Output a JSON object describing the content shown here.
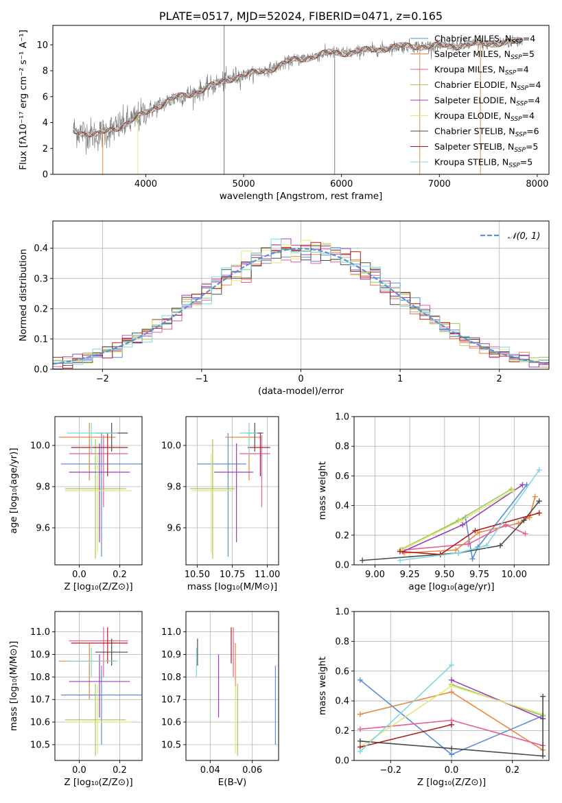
{
  "colors": {
    "chabrier_miles": "#5a8bd6",
    "salpeter_miles": "#e9883b",
    "kroupa_miles": "#e65c9b",
    "chabrier_elodie": "#9bc95c",
    "salpeter_elodie": "#9b3dbb",
    "kroupa_elodie": "#dfe876",
    "chabrier_stelib": "#4a4a4a",
    "salpeter_stelib": "#b21c1c",
    "kroupa_stelib": "#7fd8e0",
    "spectrum": "#7f7f7f",
    "normal_curve": "#5b8fd6",
    "grid": "#b0b0b0"
  },
  "chart_data": [
    {
      "id": "spectrum",
      "type": "line",
      "title": "PLATE=0517, MJD=52024, FIBERID=0471, z=0.165",
      "xlabel": "wavelength [Angstrom, rest frame]",
      "ylabel": "Flux [fλ10⁻¹⁷ erg cm⁻² s⁻¹ A⁻¹]",
      "xlim": [
        3050,
        8120
      ],
      "ylim": [
        0,
        11.5
      ],
      "xticks": [
        4000,
        5000,
        6000,
        7000,
        8000
      ],
      "xtick_labels": [
        "4000",
        "5000",
        "6000",
        "7000",
        "8000"
      ],
      "yticks": [
        0,
        2,
        4,
        6,
        8,
        10
      ],
      "ytick_labels": [
        "0",
        "2",
        "4",
        "6",
        "8",
        "10"
      ],
      "grid": false,
      "legend_position": "right",
      "data_range_x": [
        3260,
        7850
      ],
      "continuum_knots": [
        [
          3260,
          3.4
        ],
        [
          3500,
          3.0
        ],
        [
          3700,
          3.6
        ],
        [
          3900,
          4.3
        ],
        [
          4100,
          5.2
        ],
        [
          4300,
          5.9
        ],
        [
          4500,
          6.3
        ],
        [
          4700,
          6.9
        ],
        [
          4900,
          7.5
        ],
        [
          5100,
          7.8
        ],
        [
          5300,
          8.2
        ],
        [
          5500,
          8.8
        ],
        [
          5700,
          9.1
        ],
        [
          5900,
          9.4
        ],
        [
          6100,
          9.4
        ],
        [
          6300,
          9.6
        ],
        [
          6500,
          9.8
        ],
        [
          6700,
          9.9
        ],
        [
          6900,
          9.9
        ],
        [
          7100,
          9.9
        ],
        [
          7300,
          10.0
        ],
        [
          7500,
          10.1
        ],
        [
          7700,
          10.2
        ],
        [
          7850,
          10.3
        ]
      ],
      "legend": [
        {
          "key": "chabrier_miles",
          "label": "Chabrier MILES, N",
          "sub": "SSP",
          "tail": "=4"
        },
        {
          "key": "salpeter_miles",
          "label": "Salpeter MILES, N",
          "sub": "SSP",
          "tail": "=5"
        },
        {
          "key": "kroupa_miles",
          "label": "Kroupa MILES, N",
          "sub": "SSP",
          "tail": "=4"
        },
        {
          "key": "chabrier_elodie",
          "label": "Chabrier ELODIE, N",
          "sub": "SSP",
          "tail": "=4"
        },
        {
          "key": "salpeter_elodie",
          "label": "Salpeter ELODIE, N",
          "sub": "SSP",
          "tail": "=4"
        },
        {
          "key": "kroupa_elodie",
          "label": "Kroupa ELODIE, N",
          "sub": "SSP",
          "tail": "=4"
        },
        {
          "key": "chabrier_stelib",
          "label": "Chabrier STELIB, N",
          "sub": "SSP",
          "tail": "=6"
        },
        {
          "key": "salpeter_stelib",
          "label": "Salpeter STELIB, N",
          "sub": "SSP",
          "tail": "=5"
        },
        {
          "key": "kroupa_stelib",
          "label": "Kroupa STELIB, N",
          "sub": "SSP",
          "tail": "=5"
        }
      ]
    },
    {
      "id": "residuals",
      "type": "line",
      "xlabel": "(data-model)/error",
      "ylabel": "Normed distribution",
      "xlim": [
        -2.5,
        2.5
      ],
      "ylim": [
        0,
        0.49
      ],
      "xticks": [
        -2,
        -1,
        0,
        1,
        2
      ],
      "xtick_labels": [
        "−2",
        "−1",
        "0",
        "1",
        "2"
      ],
      "yticks": [
        0,
        0.1,
        0.2,
        0.3,
        0.4
      ],
      "ytick_labels": [
        "0.0",
        "0.1",
        "0.2",
        "0.3",
        "0.4"
      ],
      "grid": true,
      "legend_label": "𝒩(0, 1)",
      "legend_position": "top-right",
      "bin_width": 0.1
    },
    {
      "id": "age_vs_Z",
      "type": "scatter",
      "xlabel": "Z [log₁₀(Z/Z⊙)]",
      "ylabel": "age  [log₁₀(age/yr)]",
      "xlim": [
        -0.12,
        0.31
      ],
      "ylim": [
        9.42,
        10.14
      ],
      "xticks": [
        0.0,
        0.2
      ],
      "xtick_labels": [
        "0.0",
        "0.2"
      ],
      "yticks": [
        9.6,
        9.8,
        10.0
      ],
      "ytick_labels": [
        "9.6",
        "9.8",
        "10.0"
      ],
      "grid": true
    },
    {
      "id": "age_vs_mass",
      "type": "scatter",
      "xlabel": "mass [log₁₀(M/M⊙)]",
      "xlim": [
        10.42,
        11.08
      ],
      "ylim": [
        9.42,
        10.14
      ],
      "xticks": [
        10.5,
        10.75,
        11.0
      ],
      "xtick_labels": [
        "10.50",
        "10.75",
        "11.00"
      ],
      "yticks": [
        9.6,
        9.8,
        10.0
      ],
      "ytick_labels": [
        "9.6",
        "9.8",
        "10.0"
      ],
      "grid": true
    },
    {
      "id": "mw_vs_age",
      "type": "line",
      "xlabel": "age  [log₁₀(age/yr)]",
      "ylabel": "mass weight",
      "xlim": [
        8.85,
        10.25
      ],
      "ylim": [
        0,
        1.0
      ],
      "xticks": [
        9.0,
        9.25,
        9.5,
        9.75,
        10.0
      ],
      "xtick_labels": [
        "9.00",
        "9.25",
        "9.50",
        "9.75",
        "10.00"
      ],
      "yticks": [
        0,
        0.2,
        0.4,
        0.6,
        0.8,
        1.0
      ],
      "ytick_labels": [
        "0.0",
        "0.2",
        "0.4",
        "0.6",
        "0.8",
        "1.0"
      ],
      "grid": true
    },
    {
      "id": "mass_vs_Z",
      "type": "scatter",
      "xlabel": "Z [log₁₀(Z/Z⊙)]",
      "ylabel": "mass [log₁₀(M/M⊙)]",
      "xlim": [
        -0.12,
        0.31
      ],
      "ylim": [
        10.43,
        11.09
      ],
      "xticks": [
        0.0,
        0.2
      ],
      "xtick_labels": [
        "0.0",
        "0.2"
      ],
      "yticks": [
        10.5,
        10.6,
        10.7,
        10.8,
        10.9,
        11.0
      ],
      "ytick_labels": [
        "10.5",
        "10.6",
        "10.7",
        "10.8",
        "10.9",
        "11.0"
      ],
      "grid": true
    },
    {
      "id": "mass_vs_ebv",
      "type": "scatter",
      "xlabel": "E(B-V)",
      "xlim": [
        0.0285,
        0.0725
      ],
      "ylim": [
        10.43,
        11.09
      ],
      "xticks": [
        0.04,
        0.06
      ],
      "xtick_labels": [
        "0.04",
        "0.06"
      ],
      "yticks": [
        10.5,
        10.6,
        10.7,
        10.8,
        10.9,
        11.0
      ],
      "ytick_labels": [
        "10.5",
        "10.6",
        "10.7",
        "10.8",
        "10.9",
        "11.0"
      ],
      "grid": true
    },
    {
      "id": "mw_vs_Z",
      "type": "line",
      "xlabel": "Z [log₁₀(Z/Z⊙)]",
      "ylabel": "mass weight",
      "xlim": [
        -0.32,
        0.32
      ],
      "ylim": [
        0,
        1.0
      ],
      "xticks": [
        -0.2,
        0.0,
        0.2
      ],
      "xtick_labels": [
        "−0.2",
        "0.0",
        "0.2"
      ],
      "yticks": [
        0,
        0.2,
        0.4,
        0.6,
        0.8,
        1.0
      ],
      "ytick_labels": [
        "0.0",
        "0.2",
        "0.4",
        "0.6",
        "0.8",
        "1.0"
      ],
      "grid": true
    }
  ],
  "models": [
    {
      "key": "chabrier_miles",
      "Z": 0.11,
      "Z_err": [
        0.2,
        0.2
      ],
      "age": 9.91,
      "age_err": [
        0.45,
        0.15
      ],
      "mass": 10.72,
      "mass_err": [
        0.22,
        0.13
      ],
      "ebv": 0.071,
      "age_mw": [
        [
          9.19,
          0.1
        ],
        [
          9.65,
          0.32
        ],
        [
          9.7,
          0.04
        ],
        [
          9.74,
          0.12
        ],
        [
          10.09,
          0.54
        ]
      ],
      "Z_mw": [
        [
          -0.3,
          0.54
        ],
        [
          0.0,
          0.04
        ],
        [
          0.3,
          0.3
        ]
      ]
    },
    {
      "key": "salpeter_miles",
      "Z": 0.05,
      "Z_err": [
        0.15,
        0.13
      ],
      "age": 10.04,
      "age_err": [
        0.21,
        0.07
      ],
      "mass": 10.87,
      "mass_err": [
        0.17,
        0.08
      ],
      "ebv": 0.052,
      "age_mw": [
        [
          9.21,
          0.08
        ],
        [
          9.58,
          0.1
        ],
        [
          9.75,
          0.22
        ],
        [
          10.03,
          0.28
        ],
        [
          10.11,
          0.32
        ],
        [
          10.15,
          0.46
        ]
      ],
      "Z_mw": [
        [
          -0.3,
          0.31
        ],
        [
          0.0,
          0.46
        ],
        [
          0.3,
          0.07
        ]
      ]
    },
    {
      "key": "kroupa_miles",
      "Z": 0.12,
      "Z_err": [
        0.17,
        0.12
      ],
      "age": 9.96,
      "age_err": [
        0.26,
        0.09
      ],
      "mass": 10.96,
      "mass_err": [
        0.16,
        0.06
      ],
      "ebv": 0.051,
      "age_mw": [
        [
          9.2,
          0.1
        ],
        [
          9.67,
          0.14
        ],
        [
          9.94,
          0.27
        ],
        [
          10.08,
          0.21
        ]
      ],
      "Z_mw": [
        [
          -0.3,
          0.21
        ],
        [
          0.0,
          0.27
        ],
        [
          0.3,
          0.1
        ]
      ]
    },
    {
      "key": "chabrier_elodie",
      "Z": 0.08,
      "Z_err": [
        0.15,
        0.15
      ],
      "age": 9.79,
      "age_err": [
        0.34,
        0.24
      ],
      "mass": 10.61,
      "mass_err": [
        0.16,
        0.16
      ],
      "ebv": 0.053,
      "age_mw": [
        [
          9.18,
          0.1
        ],
        [
          9.6,
          0.3
        ],
        [
          9.98,
          0.51
        ]
      ],
      "Z_mw": [
        [
          0.0,
          0.51
        ],
        [
          0.3,
          0.3
        ]
      ]
    },
    {
      "key": "salpeter_elodie",
      "Z": 0.1,
      "Z_err": [
        0.15,
        0.15
      ],
      "age": 9.87,
      "age_err": [
        0.34,
        0.14
      ],
      "mass": 10.78,
      "mass_err": [
        0.16,
        0.12
      ],
      "ebv": 0.044,
      "age_mw": [
        [
          9.2,
          0.09
        ],
        [
          9.63,
          0.27
        ],
        [
          10.06,
          0.54
        ]
      ],
      "Z_mw": [
        [
          0.0,
          0.54
        ],
        [
          0.3,
          0.28
        ]
      ]
    },
    {
      "key": "kroupa_elodie",
      "Z": 0.09,
      "Z_err": [
        0.16,
        0.17
      ],
      "age": 9.78,
      "age_err": [
        0.3,
        0.18
      ],
      "mass": 10.6,
      "mass_err": [
        0.14,
        0.16
      ],
      "ebv": 0.052,
      "age_mw": [
        [
          9.19,
          0.1
        ],
        [
          9.62,
          0.3
        ],
        [
          9.99,
          0.5
        ]
      ],
      "Z_mw": [
        [
          -0.3,
          0.09
        ],
        [
          0.0,
          0.5
        ],
        [
          0.3,
          0.31
        ]
      ]
    },
    {
      "key": "chabrier_stelib",
      "Z": 0.16,
      "Z_err": [
        0.08,
        0.08
      ],
      "age": 10.06,
      "age_err": [
        0.09,
        0.05
      ],
      "mass": 10.91,
      "mass_err": [
        0.06,
        0.06
      ],
      "ebv": 0.034,
      "age_mw": [
        [
          8.91,
          0.03
        ],
        [
          9.6,
          0.08
        ],
        [
          9.9,
          0.13
        ],
        [
          10.07,
          0.3
        ],
        [
          10.18,
          0.43
        ]
      ],
      "Z_mw": [
        [
          -0.3,
          0.13
        ],
        [
          0.0,
          0.08
        ],
        [
          0.3,
          0.03
        ],
        [
          0.3,
          0.43
        ]
      ]
    },
    {
      "key": "salpeter_stelib",
      "Z": 0.14,
      "Z_err": [
        0.18,
        0.1
      ],
      "age": 9.99,
      "age_err": [
        0.14,
        0.07
      ],
      "mass": 10.95,
      "mass_err": [
        0.09,
        0.07
      ],
      "ebv": 0.05,
      "age_mw": [
        [
          9.18,
          0.09
        ],
        [
          9.47,
          0.07
        ],
        [
          9.72,
          0.23
        ],
        [
          10.18,
          0.35
        ]
      ],
      "Z_mw": [
        [
          -0.3,
          0.09
        ],
        [
          0.0,
          0.24
        ]
      ]
    },
    {
      "key": "kroupa_stelib",
      "Z": 0.06,
      "Z_err": [
        0.12,
        0.13
      ],
      "age": 10.06,
      "age_err": [
        0.1,
        0.05
      ],
      "mass": 10.87,
      "mass_err": [
        0.07,
        0.06
      ],
      "ebv": 0.0335,
      "age_mw": [
        [
          9.18,
          0.03
        ],
        [
          9.6,
          0.08
        ],
        [
          9.8,
          0.13
        ],
        [
          10.18,
          0.64
        ]
      ],
      "Z_mw": [
        [
          -0.3,
          0.06
        ],
        [
          0.0,
          0.64
        ]
      ]
    }
  ]
}
